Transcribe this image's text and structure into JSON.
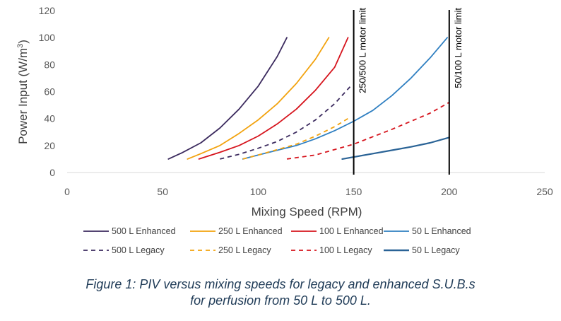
{
  "chart_data": {
    "type": "line",
    "xlabel": "Mixing Speed (RPM)",
    "ylabel": "Power Input (W/m3)",
    "xlim": [
      0,
      250
    ],
    "ylim": [
      0,
      120
    ],
    "xticks": [
      0,
      50,
      100,
      150,
      200,
      250
    ],
    "yticks": [
      0,
      20,
      40,
      60,
      80,
      100,
      120
    ],
    "grid": false,
    "legend_position": "bottom",
    "series": [
      {
        "name": "500 L Enhanced",
        "color": "#3b2a5e",
        "dash": "solid",
        "x": [
          53,
          60,
          70,
          80,
          90,
          100,
          110,
          115
        ],
        "y": [
          10,
          14.5,
          22,
          33,
          47,
          64,
          86,
          100
        ]
      },
      {
        "name": "250 L Enhanced",
        "color": "#f2a20d",
        "dash": "solid",
        "x": [
          63,
          70,
          80,
          90,
          100,
          110,
          120,
          130,
          137
        ],
        "y": [
          10,
          14,
          20,
          29,
          39,
          51,
          66,
          84,
          100
        ]
      },
      {
        "name": "100 L Enhanced",
        "color": "#d6141d",
        "dash": "solid",
        "x": [
          69,
          80,
          90,
          100,
          110,
          120,
          130,
          140,
          147
        ],
        "y": [
          10,
          15,
          20,
          27,
          36,
          47,
          61,
          78,
          100
        ]
      },
      {
        "name": "50 L Enhanced",
        "color": "#2f7fc1",
        "dash": "solid",
        "x": [
          92,
          100,
          110,
          120,
          130,
          140,
          150,
          160,
          170,
          180,
          190,
          199
        ],
        "y": [
          10,
          13,
          16.5,
          20,
          25,
          31,
          38,
          46,
          57,
          70,
          85,
          100
        ]
      },
      {
        "name": "500 L Legacy",
        "color": "#3b2a5e",
        "dash": "dashed",
        "x": [
          80,
          90,
          100,
          110,
          120,
          130,
          140,
          149
        ],
        "y": [
          10,
          13.5,
          18,
          23,
          30,
          39,
          51,
          65
        ]
      },
      {
        "name": "250 L Legacy",
        "color": "#f2a20d",
        "dash": "dashed",
        "x": [
          92,
          100,
          110,
          120,
          130,
          140,
          147
        ],
        "y": [
          10,
          13,
          17,
          21,
          27,
          34,
          40
        ]
      },
      {
        "name": "100 L Legacy",
        "color": "#d6141d",
        "dash": "dashed",
        "x": [
          115,
          130,
          150,
          170,
          190,
          200
        ],
        "y": [
          10,
          13,
          21,
          32,
          44,
          52
        ]
      },
      {
        "name": "50 L Legacy",
        "color": "#2a6396",
        "dash": "solid",
        "x": [
          144,
          150,
          160,
          170,
          180,
          190,
          200
        ],
        "y": [
          10,
          11.5,
          14,
          16.5,
          19,
          22,
          26
        ]
      }
    ],
    "annotations": [
      {
        "type": "vline",
        "x": 150,
        "label": "250/500 L motor limit"
      },
      {
        "type": "vline",
        "x": 200,
        "label": "50/100 L motor limit"
      }
    ]
  },
  "caption": {
    "line1": "Figure 1: PIV versus mixing speeds for legacy and enhanced S.U.B.s",
    "line2": "for perfusion from 50 L to 500 L."
  }
}
